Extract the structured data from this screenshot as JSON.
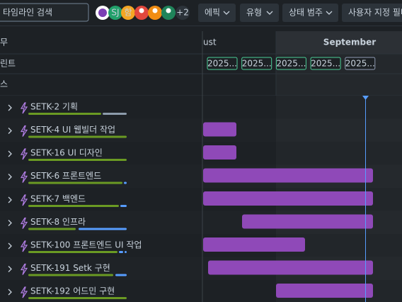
{
  "toolbar": {
    "search_placeholder": "타임라인 검색",
    "avatars": [
      "SJ",
      "함"
    ],
    "more_avatars": "+2",
    "filters": [
      "에픽",
      "유형",
      "상태 범주",
      "사용자 지정 필터"
    ]
  },
  "header": {
    "left": "무",
    "months": [
      "ust",
      "September"
    ]
  },
  "sprint_row": {
    "label": "린트",
    "chips": [
      "2025...",
      "2025...",
      "2025...",
      "2025...",
      "2025..."
    ]
  },
  "release_row": {
    "label": "스"
  },
  "issues": [
    "SETK-2 기획",
    "SETK-4 UI 웹빌더 작업",
    "SETK-16 UI 디자인",
    "SETK-6 프론트엔드",
    "SETK-7 백엔드",
    "SETK-8 인프라",
    "SETK-100 프론트엔드 UI 작업",
    "SETK-191 Setk 구현",
    "SETK-192 어드민 구현"
  ]
}
